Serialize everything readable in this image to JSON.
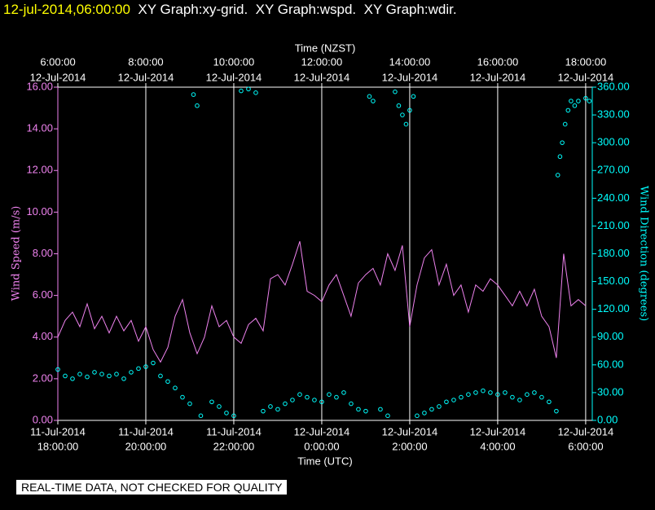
{
  "header": {
    "timestamp": "12-jul-2014,06:00:00",
    "graphs": "XY Graph:xy-grid.  XY Graph:wspd.  XY Graph:wdir."
  },
  "footer": "REAL-TIME DATA, NOT CHECKED FOR QUALITY",
  "chart_data": {
    "type": "line-scatter",
    "xlabel": "Time (UTC)",
    "x2label": "Time (NZST)",
    "ylabel": "Wind Speed (m/s)",
    "y2label": "Wind Direction (degrees)",
    "xlim": [
      "2014-07-11T18:00:00",
      "2014-07-12T06:09:00"
    ],
    "xticks": [
      {
        "value": "2014-07-11T18:00:00",
        "date": "11-Jul-2014",
        "time": "18:00:00"
      },
      {
        "value": "2014-07-11T20:00:00",
        "date": "11-Jul-2014",
        "time": "20:00:00"
      },
      {
        "value": "2014-07-11T22:00:00",
        "date": "11-Jul-2014",
        "time": "22:00:00"
      },
      {
        "value": "2014-07-12T00:00:00",
        "date": "12-Jul-2014",
        "time": "0:00:00"
      },
      {
        "value": "2014-07-12T02:00:00",
        "date": "12-Jul-2014",
        "time": "2:00:00"
      },
      {
        "value": "2014-07-12T04:00:00",
        "date": "12-Jul-2014",
        "time": "4:00:00"
      },
      {
        "value": "2014-07-12T06:00:00",
        "date": "12-Jul-2014",
        "time": "6:00:00"
      }
    ],
    "x2ticks": [
      {
        "value": "2014-07-11T18:00:00",
        "date": "12-Jul-2014",
        "time": "6:00:00"
      },
      {
        "value": "2014-07-11T20:00:00",
        "date": "12-Jul-2014",
        "time": "8:00:00"
      },
      {
        "value": "2014-07-11T22:00:00",
        "date": "12-Jul-2014",
        "time": "10:00:00"
      },
      {
        "value": "2014-07-12T00:00:00",
        "date": "12-Jul-2014",
        "time": "12:00:00"
      },
      {
        "value": "2014-07-12T02:00:00",
        "date": "12-Jul-2014",
        "time": "14:00:00"
      },
      {
        "value": "2014-07-12T04:00:00",
        "date": "12-Jul-2014",
        "time": "16:00:00"
      },
      {
        "value": "2014-07-12T06:00:00",
        "date": "12-Jul-2014",
        "time": "18:00:00"
      }
    ],
    "ylim": [
      0,
      16
    ],
    "yticks": [
      {
        "value": 0,
        "label": "0.00"
      },
      {
        "value": 2,
        "label": "2.00"
      },
      {
        "value": 4,
        "label": "4.00"
      },
      {
        "value": 6,
        "label": "6.00"
      },
      {
        "value": 8,
        "label": "8.00"
      },
      {
        "value": 10,
        "label": "10.00"
      },
      {
        "value": 12,
        "label": "12.00"
      },
      {
        "value": 14,
        "label": "14.00"
      },
      {
        "value": 16,
        "label": "16.00"
      }
    ],
    "y2lim": [
      0,
      360
    ],
    "y2ticks": [
      {
        "value": 0,
        "label": "0.00"
      },
      {
        "value": 30,
        "label": "30.00"
      },
      {
        "value": 60,
        "label": "60.00"
      },
      {
        "value": 90,
        "label": "90.00"
      },
      {
        "value": 120,
        "label": "120.00"
      },
      {
        "value": 150,
        "label": "150.00"
      },
      {
        "value": 180,
        "label": "180.00"
      },
      {
        "value": 210,
        "label": "210.00"
      },
      {
        "value": 240,
        "label": "240.00"
      },
      {
        "value": 270,
        "label": "270.00"
      },
      {
        "value": 300,
        "label": "300.00"
      },
      {
        "value": 330,
        "label": "330.00"
      },
      {
        "value": 360,
        "label": "360.00"
      }
    ],
    "grid": "x",
    "ycolor": "#ee82ee",
    "y2color": "#00ffff",
    "series": [
      {
        "kind": "line",
        "color": "#ee82ee",
        "x": [
          "2014-07-11T18:00:00",
          "2014-07-11T18:10:00",
          "2014-07-11T18:20:00",
          "2014-07-11T18:30:00",
          "2014-07-11T18:40:00",
          "2014-07-11T18:50:00",
          "2014-07-11T19:00:00",
          "2014-07-11T19:10:00",
          "2014-07-11T19:20:00",
          "2014-07-11T19:30:00",
          "2014-07-11T19:40:00",
          "2014-07-11T19:50:00",
          "2014-07-11T20:00:00",
          "2014-07-11T20:10:00",
          "2014-07-11T20:20:00",
          "2014-07-11T20:30:00",
          "2014-07-11T20:40:00",
          "2014-07-11T20:50:00",
          "2014-07-11T21:00:00",
          "2014-07-11T21:10:00",
          "2014-07-11T21:20:00",
          "2014-07-11T21:30:00",
          "2014-07-11T21:40:00",
          "2014-07-11T21:50:00",
          "2014-07-11T22:00:00",
          "2014-07-11T22:10:00",
          "2014-07-11T22:20:00",
          "2014-07-11T22:30:00",
          "2014-07-11T22:40:00",
          "2014-07-11T22:50:00",
          "2014-07-11T23:00:00",
          "2014-07-11T23:10:00",
          "2014-07-11T23:20:00",
          "2014-07-11T23:30:00",
          "2014-07-11T23:40:00",
          "2014-07-11T23:50:00",
          "2014-07-12T00:00:00",
          "2014-07-12T00:10:00",
          "2014-07-12T00:20:00",
          "2014-07-12T00:30:00",
          "2014-07-12T00:40:00",
          "2014-07-12T00:50:00",
          "2014-07-12T01:00:00",
          "2014-07-12T01:10:00",
          "2014-07-12T01:20:00",
          "2014-07-12T01:30:00",
          "2014-07-12T01:40:00",
          "2014-07-12T01:50:00",
          "2014-07-12T02:00:00",
          "2014-07-12T02:10:00",
          "2014-07-12T02:20:00",
          "2014-07-12T02:30:00",
          "2014-07-12T02:40:00",
          "2014-07-12T02:50:00",
          "2014-07-12T03:00:00",
          "2014-07-12T03:10:00",
          "2014-07-12T03:20:00",
          "2014-07-12T03:30:00",
          "2014-07-12T03:40:00",
          "2014-07-12T03:50:00",
          "2014-07-12T04:00:00",
          "2014-07-12T04:10:00",
          "2014-07-12T04:20:00",
          "2014-07-12T04:30:00",
          "2014-07-12T04:40:00",
          "2014-07-12T04:50:00",
          "2014-07-12T05:00:00",
          "2014-07-12T05:10:00",
          "2014-07-12T05:20:00",
          "2014-07-12T05:30:00",
          "2014-07-12T05:40:00",
          "2014-07-12T05:50:00",
          "2014-07-12T06:00:00"
        ],
        "values": [
          4.0,
          4.8,
          5.2,
          4.5,
          5.6,
          4.4,
          5.0,
          4.2,
          5.0,
          4.3,
          4.8,
          3.8,
          4.5,
          3.4,
          2.8,
          3.5,
          5.0,
          5.8,
          4.2,
          3.2,
          4.0,
          5.5,
          4.5,
          4.8,
          4.0,
          3.7,
          4.6,
          4.9,
          4.3,
          6.8,
          7.0,
          6.5,
          7.5,
          8.6,
          6.2,
          6.0,
          5.7,
          6.5,
          7.0,
          6.0,
          5.0,
          6.6,
          7.0,
          7.3,
          6.5,
          8.0,
          7.2,
          8.4,
          4.5,
          6.5,
          7.8,
          8.2,
          6.5,
          7.5,
          6.0,
          6.5,
          5.2,
          6.5,
          6.2,
          6.8,
          6.5,
          6.0,
          5.5,
          6.2,
          5.5,
          6.3,
          5.0,
          4.5,
          3.0,
          8.0,
          5.5,
          5.8,
          5.5
        ]
      },
      {
        "kind": "scatter",
        "axis": "y2",
        "color": "#00ffff",
        "x": [
          "2014-07-11T18:00:00",
          "2014-07-11T18:10:00",
          "2014-07-11T18:20:00",
          "2014-07-11T18:30:00",
          "2014-07-11T18:40:00",
          "2014-07-11T18:50:00",
          "2014-07-11T19:00:00",
          "2014-07-11T19:10:00",
          "2014-07-11T19:20:00",
          "2014-07-11T19:30:00",
          "2014-07-11T19:40:00",
          "2014-07-11T19:50:00",
          "2014-07-11T20:00:00",
          "2014-07-11T20:10:00",
          "2014-07-11T20:20:00",
          "2014-07-11T20:30:00",
          "2014-07-11T20:40:00",
          "2014-07-11T20:50:00",
          "2014-07-11T21:00:00",
          "2014-07-11T21:05:00",
          "2014-07-11T21:10:00",
          "2014-07-11T21:15:00",
          "2014-07-11T21:30:00",
          "2014-07-11T21:40:00",
          "2014-07-11T21:50:00",
          "2014-07-11T22:00:00",
          "2014-07-11T22:10:00",
          "2014-07-11T22:20:00",
          "2014-07-11T22:30:00",
          "2014-07-11T22:40:00",
          "2014-07-11T22:50:00",
          "2014-07-11T23:00:00",
          "2014-07-11T23:10:00",
          "2014-07-11T23:20:00",
          "2014-07-11T23:30:00",
          "2014-07-11T23:40:00",
          "2014-07-11T23:50:00",
          "2014-07-12T00:00:00",
          "2014-07-12T00:10:00",
          "2014-07-12T00:20:00",
          "2014-07-12T00:30:00",
          "2014-07-12T00:40:00",
          "2014-07-12T00:50:00",
          "2014-07-12T01:00:00",
          "2014-07-12T01:05:00",
          "2014-07-12T01:10:00",
          "2014-07-12T01:20:00",
          "2014-07-12T01:30:00",
          "2014-07-12T01:40:00",
          "2014-07-12T01:45:00",
          "2014-07-12T01:50:00",
          "2014-07-12T01:55:00",
          "2014-07-12T02:00:00",
          "2014-07-12T02:05:00",
          "2014-07-12T02:10:00",
          "2014-07-12T02:20:00",
          "2014-07-12T02:30:00",
          "2014-07-12T02:40:00",
          "2014-07-12T02:50:00",
          "2014-07-12T03:00:00",
          "2014-07-12T03:10:00",
          "2014-07-12T03:20:00",
          "2014-07-12T03:30:00",
          "2014-07-12T03:40:00",
          "2014-07-12T03:50:00",
          "2014-07-12T04:00:00",
          "2014-07-12T04:10:00",
          "2014-07-12T04:20:00",
          "2014-07-12T04:30:00",
          "2014-07-12T04:40:00",
          "2014-07-12T04:50:00",
          "2014-07-12T05:00:00",
          "2014-07-12T05:10:00",
          "2014-07-12T05:20:00",
          "2014-07-12T05:22:00",
          "2014-07-12T05:25:00",
          "2014-07-12T05:28:00",
          "2014-07-12T05:32:00",
          "2014-07-12T05:36:00",
          "2014-07-12T05:40:00",
          "2014-07-12T05:45:00",
          "2014-07-12T05:50:00",
          "2014-07-12T06:00:00",
          "2014-07-12T06:05:00"
        ],
        "values": [
          55,
          48,
          45,
          50,
          47,
          52,
          50,
          48,
          50,
          45,
          52,
          56,
          58,
          62,
          48,
          42,
          35,
          25,
          18,
          352,
          340,
          5,
          20,
          15,
          8,
          5,
          356,
          358,
          354,
          10,
          15,
          12,
          18,
          22,
          28,
          25,
          22,
          20,
          28,
          25,
          30,
          18,
          12,
          10,
          350,
          345,
          12,
          5,
          355,
          340,
          330,
          320,
          335,
          350,
          5,
          8,
          12,
          15,
          20,
          22,
          25,
          28,
          30,
          32,
          30,
          28,
          30,
          25,
          22,
          28,
          30,
          25,
          20,
          10,
          265,
          285,
          300,
          320,
          335,
          345,
          340,
          345,
          348,
          345
        ]
      }
    ]
  }
}
